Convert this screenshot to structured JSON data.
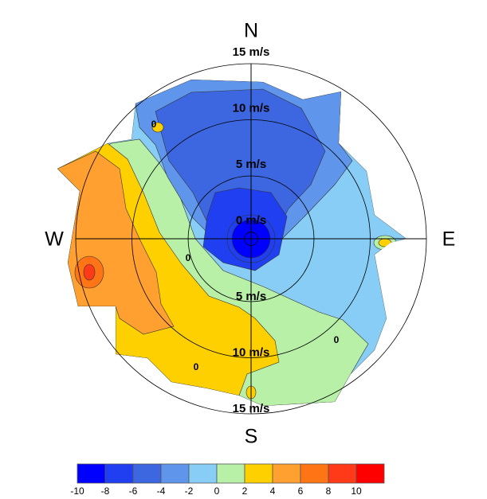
{
  "chart_data": {
    "type": "polar-contour",
    "compass": [
      "N",
      "E",
      "S",
      "W"
    ],
    "rlim": [
      -0.6,
      15
    ],
    "rticks": [
      {
        "value": 0,
        "label": "0 m/s"
      },
      {
        "value": 5,
        "label": "5 m/s"
      },
      {
        "value": 10,
        "label": "10 m/s"
      },
      {
        "value": 15,
        "label": "15 m/s"
      }
    ],
    "contour_labels": [
      "0",
      "0",
      "0",
      "0"
    ],
    "colorbar": {
      "ticks": [
        -10,
        -8,
        -6,
        -4,
        -2,
        0,
        2,
        4,
        6,
        8,
        10
      ],
      "colors": [
        "#0000ff",
        "#1f3ff0",
        "#3d67e0",
        "#5f96ec",
        "#87cdf5",
        "#b8f0a8",
        "#ffd000",
        "#ffa030",
        "#ff7414",
        "#ff3a18",
        "#ff0000"
      ]
    }
  }
}
